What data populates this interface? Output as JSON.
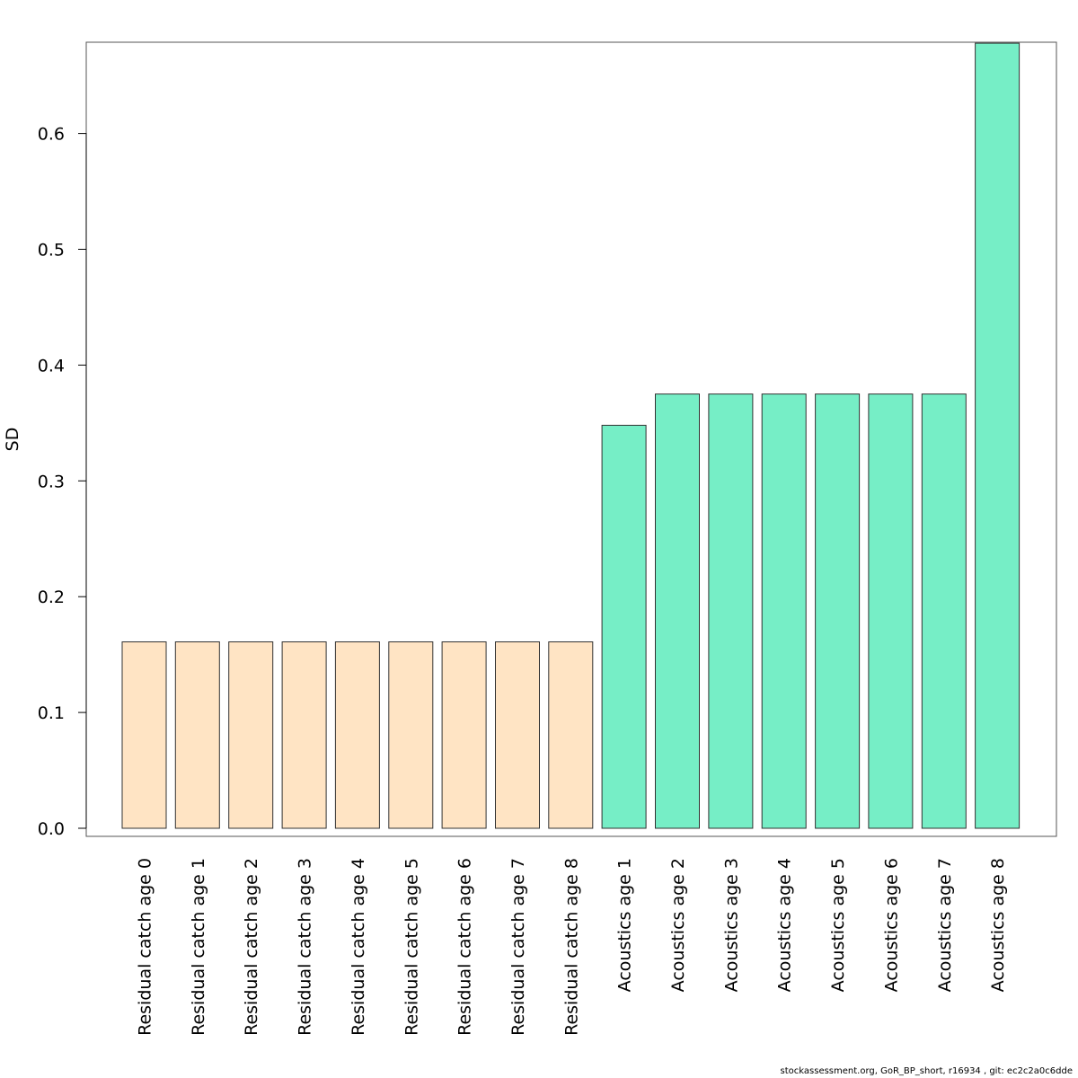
{
  "chart_data": {
    "type": "bar",
    "title": "",
    "xlabel": "",
    "ylabel": "SD",
    "ylim": [
      0,
      0.678
    ],
    "yticks": [
      0.0,
      0.1,
      0.2,
      0.3,
      0.4,
      0.5,
      0.6
    ],
    "ytick_labels": [
      "0.0",
      "0.1",
      "0.2",
      "0.3",
      "0.4",
      "0.5",
      "0.6"
    ],
    "grid": false,
    "categories": [
      "Residual catch age 0",
      "Residual catch age 1",
      "Residual catch age 2",
      "Residual catch age 3",
      "Residual catch age 4",
      "Residual catch age 5",
      "Residual catch age 6",
      "Residual catch age 7",
      "Residual catch age 8",
      "Acoustics age 1",
      "Acoustics age 2",
      "Acoustics age 3",
      "Acoustics age 4",
      "Acoustics age 5",
      "Acoustics age 6",
      "Acoustics age 7",
      "Acoustics age 8"
    ],
    "values": [
      0.161,
      0.161,
      0.161,
      0.161,
      0.161,
      0.161,
      0.161,
      0.161,
      0.161,
      0.348,
      0.375,
      0.375,
      0.375,
      0.375,
      0.375,
      0.375,
      0.678
    ],
    "bar_colors": [
      "#FFE4C4",
      "#FFE4C4",
      "#FFE4C4",
      "#FFE4C4",
      "#FFE4C4",
      "#FFE4C4",
      "#FFE4C4",
      "#FFE4C4",
      "#FFE4C4",
      "#76EEC6",
      "#76EEC6",
      "#76EEC6",
      "#76EEC6",
      "#76EEC6",
      "#76EEC6",
      "#76EEC6",
      "#76EEC6"
    ]
  },
  "footer": "stockassessment.org, GoR_BP_short, r16934 , git: ec2c2a0c6dde"
}
